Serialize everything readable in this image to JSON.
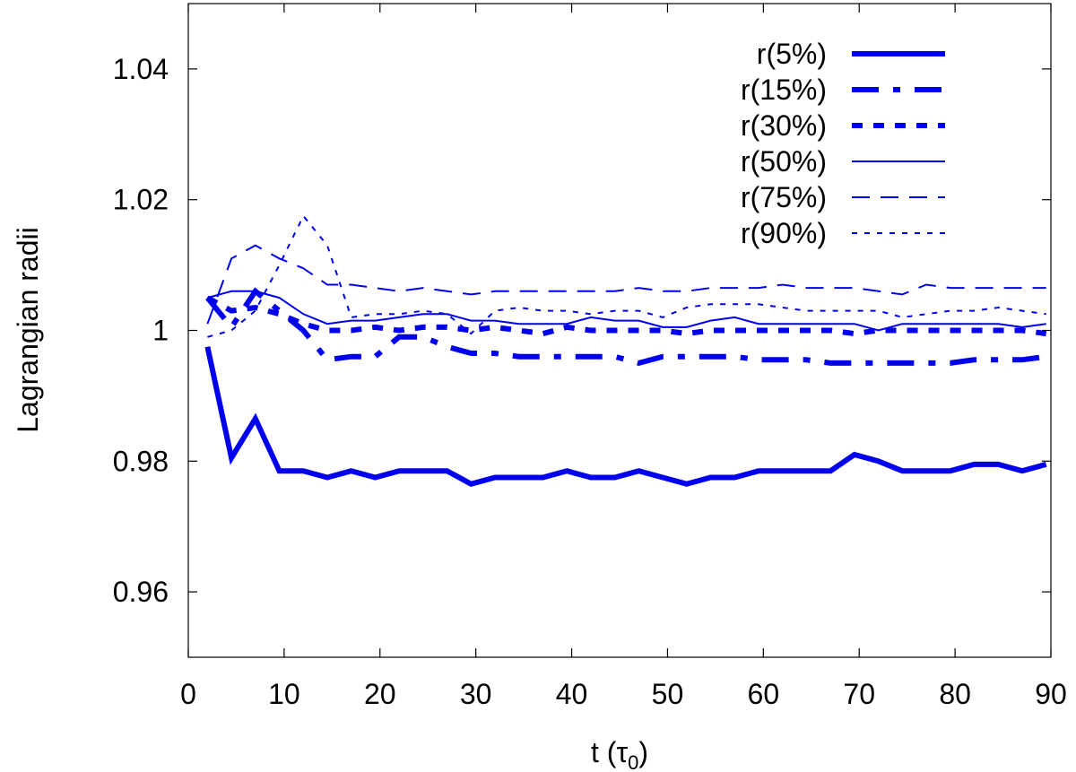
{
  "chart_data": {
    "type": "line",
    "title": "",
    "xlabel_main": "t (",
    "xlabel_symbol": "τ",
    "xlabel_sub": "0",
    "xlabel_close": ")",
    "ylabel": "Lagrangian radii",
    "xlim": [
      0,
      90
    ],
    "ylim": [
      0.95,
      1.05
    ],
    "xticks": [
      0,
      10,
      20,
      30,
      40,
      50,
      60,
      70,
      80,
      90
    ],
    "xtick_labels": [
      "0",
      "10",
      "20",
      "30",
      "40",
      "50",
      "60",
      "70",
      "80",
      "90"
    ],
    "yticks": [
      0.96,
      0.98,
      1.0,
      1.02,
      1.04
    ],
    "ytick_labels": [
      "0.96",
      "0.98",
      "1",
      "1.02",
      "1.04"
    ],
    "grid": false,
    "legend_position": "top-right",
    "color": "#0000ee",
    "x": [
      2,
      4.5,
      7,
      9.5,
      12,
      14.5,
      17,
      19.5,
      22,
      24.5,
      27,
      29.5,
      32,
      34.5,
      37,
      39.5,
      42,
      44.5,
      47,
      49.5,
      52,
      54.5,
      57,
      59.5,
      62,
      64.5,
      67,
      69.5,
      72,
      74.5,
      77,
      79.5,
      82,
      84.5,
      87,
      89.5
    ],
    "series": [
      {
        "name": "r(5%)",
        "style": "solid-thick",
        "values": [
          0.9975,
          0.9805,
          0.9865,
          0.9785,
          0.9785,
          0.9775,
          0.9785,
          0.9775,
          0.9785,
          0.9785,
          0.9785,
          0.9765,
          0.9775,
          0.9775,
          0.9775,
          0.9785,
          0.9775,
          0.9775,
          0.9785,
          0.9775,
          0.9765,
          0.9775,
          0.9775,
          0.9785,
          0.9785,
          0.9785,
          0.9785,
          0.981,
          0.98,
          0.9785,
          0.9785,
          0.9785,
          0.9795,
          0.9795,
          0.9785,
          0.9795
        ]
      },
      {
        "name": "r(15%)",
        "style": "dash-dot-thick",
        "values": [
          1.005,
          1.0005,
          1.006,
          1.003,
          1.0,
          0.9955,
          0.996,
          0.996,
          0.999,
          0.999,
          0.9975,
          0.9965,
          0.9965,
          0.996,
          0.996,
          0.996,
          0.996,
          0.996,
          0.995,
          0.996,
          0.996,
          0.996,
          0.996,
          0.9955,
          0.9955,
          0.9955,
          0.995,
          0.995,
          0.995,
          0.995,
          0.995,
          0.995,
          0.9955,
          0.9955,
          0.9955,
          0.996
        ]
      },
      {
        "name": "r(30%)",
        "style": "dot-thick",
        "values": [
          1.005,
          1.003,
          1.0035,
          1.0025,
          1.001,
          1.0,
          1.0,
          1.0005,
          1.0,
          1.0005,
          1.0005,
          1.0,
          1.0005,
          1.0,
          0.9995,
          1.0005,
          1.0,
          1.0,
          1.0,
          1.0,
          0.9995,
          1.0,
          1.0,
          1.0,
          1.0,
          1.0,
          1.0,
          0.9995,
          1.0,
          1.0,
          1.0,
          1.0,
          1.0,
          1.0,
          1.0,
          0.9995
        ]
      },
      {
        "name": "r(50%)",
        "style": "solid-thin",
        "values": [
          1.005,
          1.006,
          1.006,
          1.005,
          1.0025,
          1.001,
          1.0015,
          1.0015,
          1.002,
          1.0025,
          1.0025,
          1.0015,
          1.0015,
          1.001,
          1.001,
          1.001,
          1.002,
          1.0015,
          1.0015,
          1.0005,
          1.0005,
          1.0015,
          1.002,
          1.001,
          1.001,
          1.001,
          1.001,
          1.001,
          1.0,
          1.001,
          1.001,
          1.001,
          1.001,
          1.001,
          1.0005,
          1.001
        ]
      },
      {
        "name": "r(75%)",
        "style": "dash-thin",
        "values": [
          1.001,
          1.011,
          1.013,
          1.011,
          1.0095,
          1.007,
          1.007,
          1.0065,
          1.006,
          1.0065,
          1.006,
          1.0055,
          1.006,
          1.006,
          1.006,
          1.006,
          1.006,
          1.006,
          1.0065,
          1.006,
          1.006,
          1.0065,
          1.0065,
          1.0065,
          1.007,
          1.0065,
          1.0065,
          1.0065,
          1.006,
          1.0055,
          1.007,
          1.0065,
          1.0065,
          1.0065,
          1.0065,
          1.0065
        ]
      },
      {
        "name": "r(90%)",
        "style": "dot-thin",
        "values": [
          0.999,
          1.0,
          1.003,
          1.01,
          1.0175,
          1.013,
          1.002,
          1.0025,
          1.0025,
          1.003,
          1.0025,
          0.9995,
          1.003,
          1.0035,
          1.003,
          1.003,
          1.0025,
          1.003,
          1.003,
          1.002,
          1.0035,
          1.004,
          1.004,
          1.004,
          1.0035,
          1.003,
          1.003,
          1.003,
          1.003,
          1.002,
          1.0025,
          1.003,
          1.003,
          1.0035,
          1.003,
          1.0025
        ]
      }
    ]
  }
}
